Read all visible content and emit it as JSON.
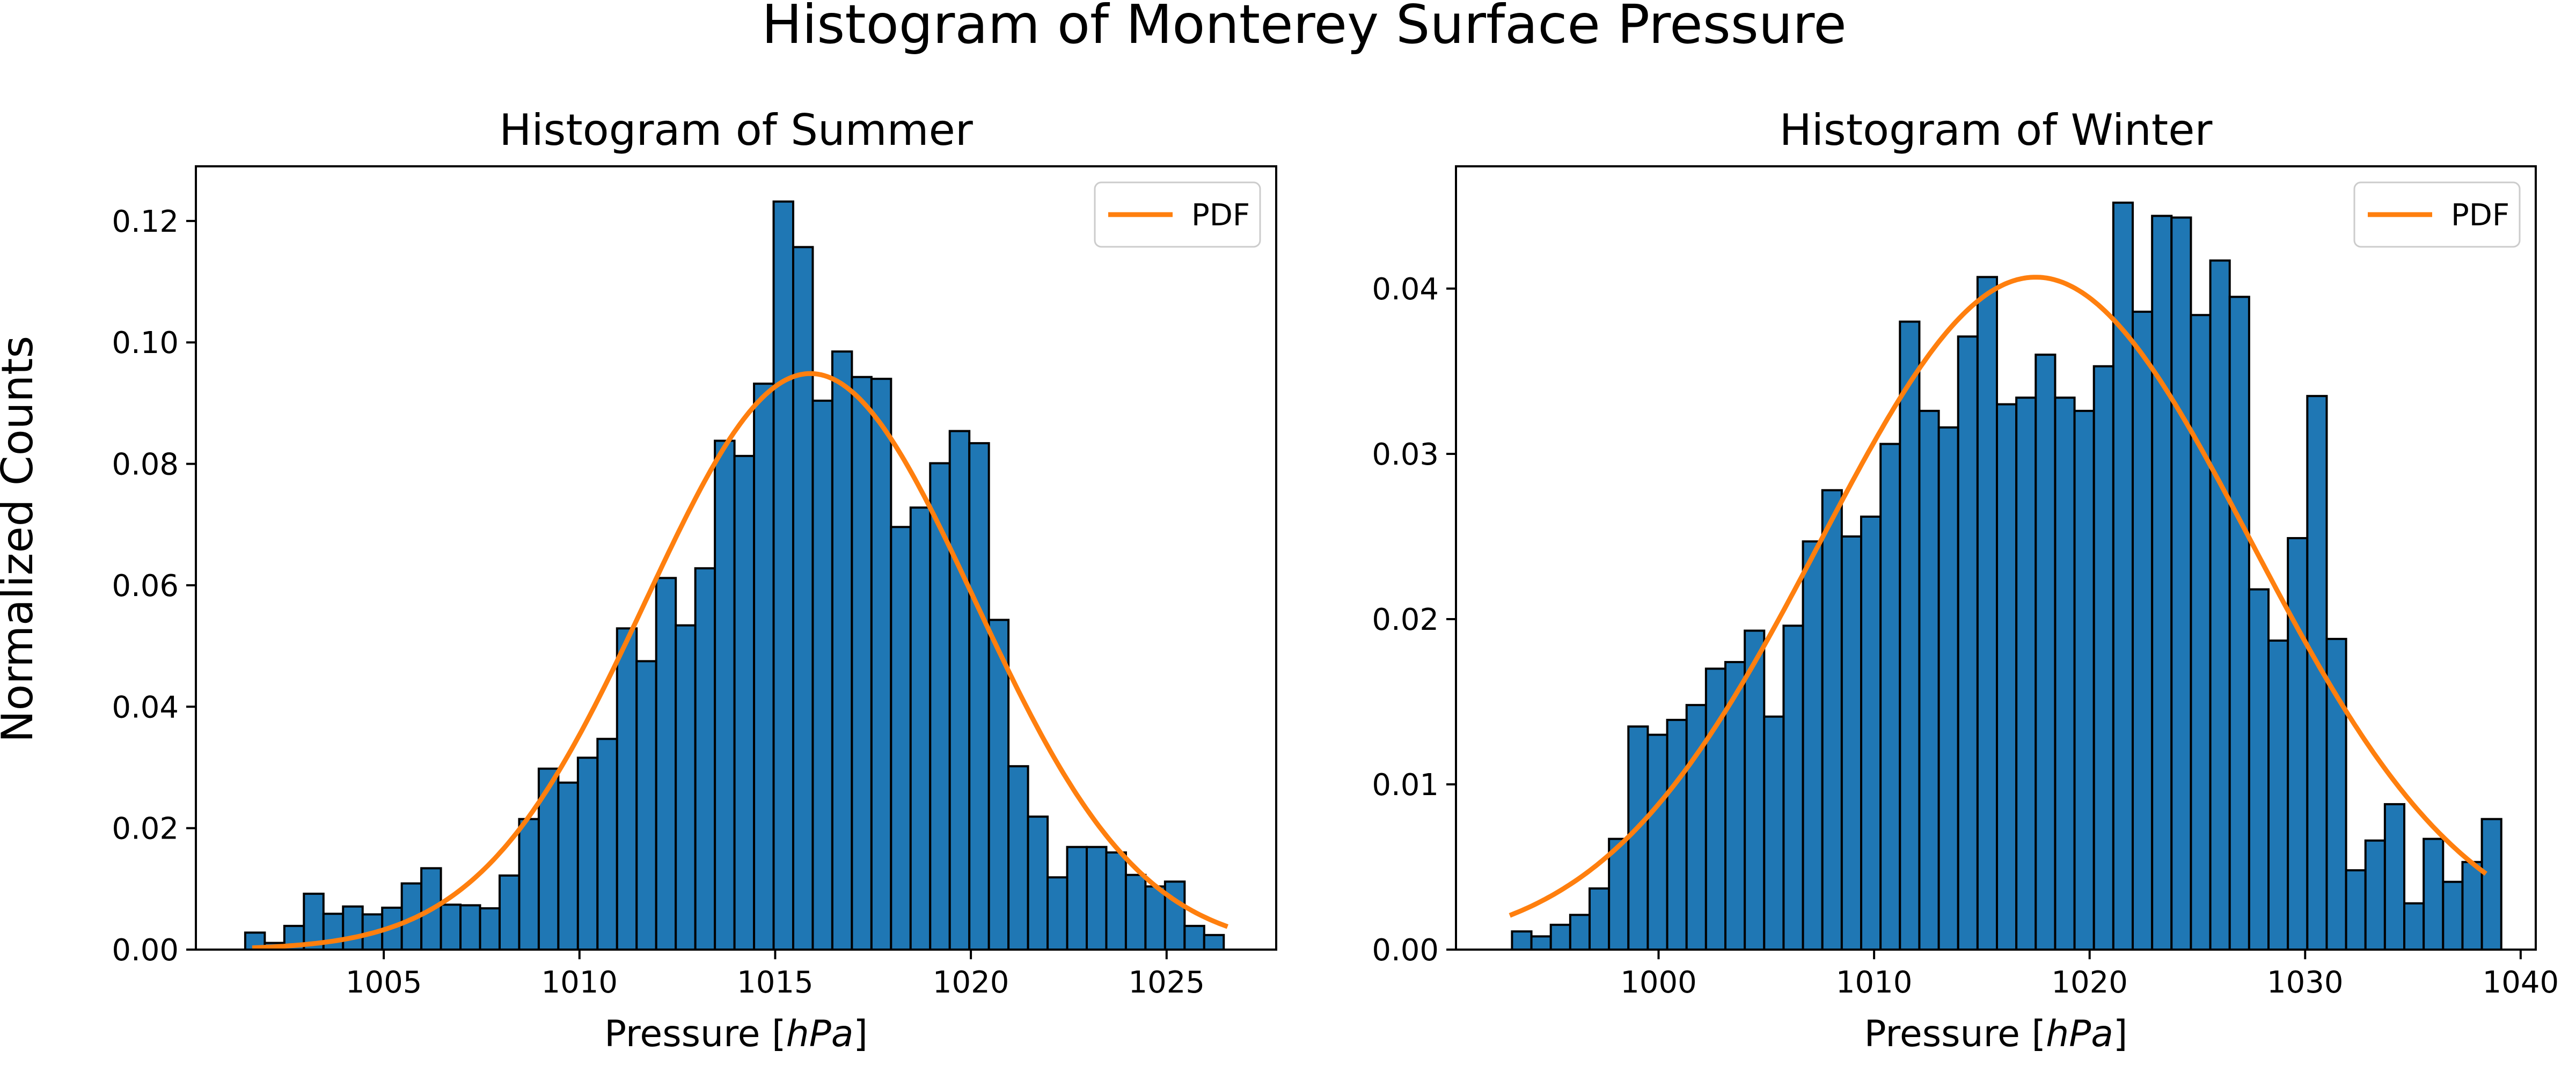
{
  "figure": {
    "title": "Histogram of Monterey Surface Pressure",
    "ylabel": "Normalized Counts"
  },
  "chart_data": [
    {
      "type": "bar",
      "title": "Histogram of Summer",
      "xlabel": "Pressure [hPa]",
      "xlabel_prefix": "Pressure [",
      "xlabel_italic": "hPa",
      "xlabel_suffix": "]",
      "ylabel": "",
      "xlim": [
        1000.2,
        1027.8
      ],
      "ylim": [
        0,
        0.129
      ],
      "xticks": [
        1005,
        1010,
        1015,
        1020,
        1025
      ],
      "xtick_labels": [
        "1005",
        "1010",
        "1015",
        "1020",
        "1025"
      ],
      "yticks": [
        0,
        0.02,
        0.04,
        0.06,
        0.08,
        0.1,
        0.12
      ],
      "ytick_labels": [
        "0.00",
        "0.02",
        "0.04",
        "0.06",
        "0.08",
        "0.10",
        "0.12"
      ],
      "grid": false,
      "legend_position": "top-right",
      "bin_start": 1001.46,
      "bin_width": 0.5,
      "values": [
        0.0028,
        0.0011,
        0.0039,
        0.0092,
        0.0059,
        0.0071,
        0.0058,
        0.0069,
        0.0109,
        0.0134,
        0.0074,
        0.0073,
        0.0068,
        0.0122,
        0.0215,
        0.0298,
        0.0275,
        0.0316,
        0.0347,
        0.0529,
        0.0475,
        0.0612,
        0.0534,
        0.0628,
        0.0838,
        0.0813,
        0.0932,
        0.1232,
        0.1157,
        0.0904,
        0.0985,
        0.0943,
        0.094,
        0.0696,
        0.0728,
        0.0801,
        0.0854,
        0.0834,
        0.0543,
        0.0302,
        0.0219,
        0.0119,
        0.0169,
        0.0169,
        0.016,
        0.0123,
        0.0104,
        0.0112,
        0.0039,
        0.0024
      ],
      "pdf": {
        "name": "PDF",
        "mean": 1015.9,
        "std": 4.2,
        "x_range": [
          1001.7,
          1026.5
        ]
      },
      "bar_color": "#1f77b4",
      "pdf_color": "#ff7f0e"
    },
    {
      "type": "bar",
      "title": "Histogram of Winter",
      "xlabel": "Pressure [hPa]",
      "xlabel_prefix": "Pressure [",
      "xlabel_italic": "hPa",
      "xlabel_suffix": "]",
      "ylabel": "",
      "xlim": [
        990.6,
        1040.7
      ],
      "ylim": [
        0,
        0.0474
      ],
      "xticks": [
        1000,
        1010,
        1020,
        1030,
        1040
      ],
      "xtick_labels": [
        "1000",
        "1010",
        "1020",
        "1030",
        "1040"
      ],
      "yticks": [
        0,
        0.01,
        0.02,
        0.03,
        0.04
      ],
      "ytick_labels": [
        "0.00",
        "0.01",
        "0.02",
        "0.03",
        "0.04"
      ],
      "grid": false,
      "legend_position": "top-right",
      "bin_start": 993.2,
      "bin_width": 0.9,
      "values": [
        0.0011,
        0.0008,
        0.0015,
        0.0021,
        0.0037,
        0.0067,
        0.0135,
        0.013,
        0.0139,
        0.0148,
        0.017,
        0.0174,
        0.0193,
        0.0141,
        0.0196,
        0.0247,
        0.0278,
        0.025,
        0.0262,
        0.0306,
        0.038,
        0.0326,
        0.0316,
        0.0371,
        0.0407,
        0.033,
        0.0334,
        0.036,
        0.0334,
        0.0326,
        0.0353,
        0.0452,
        0.0386,
        0.0444,
        0.0443,
        0.0384,
        0.0417,
        0.0395,
        0.0218,
        0.0187,
        0.0249,
        0.0335,
        0.0188,
        0.0048,
        0.0066,
        0.0088,
        0.0028,
        0.0067,
        0.0041,
        0.0053,
        0.0079
      ],
      "pdf": {
        "name": "PDF",
        "mean": 1017.5,
        "std": 10.0,
        "x_range": [
          993.2,
          1038.3
        ]
      },
      "bar_color": "#1f77b4",
      "pdf_color": "#ff7f0e"
    }
  ]
}
